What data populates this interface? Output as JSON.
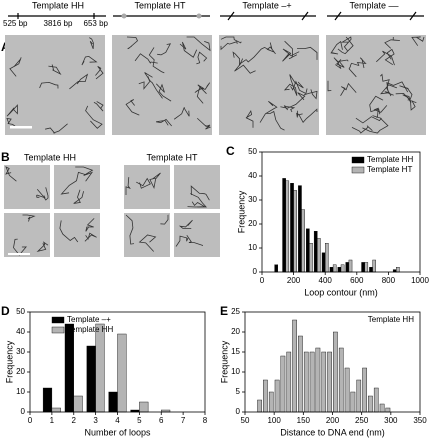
{
  "panel_a": {
    "label": "A",
    "templates": [
      "Template HH",
      "Template HT",
      "Template –+",
      "Template ––"
    ],
    "segments": [
      "525 bp",
      "3816 bp",
      "653 bp"
    ]
  },
  "panel_b": {
    "label": "B",
    "templates": [
      "Template HH",
      "Template HT"
    ]
  },
  "chart_data": [
    {
      "type": "bar",
      "label": "C",
      "xlabel": "Loop contour (nm)",
      "ylabel": "Frequency",
      "x": [
        100,
        150,
        200,
        250,
        300,
        350,
        400,
        450,
        500,
        550,
        600,
        650,
        700,
        750,
        800,
        850
      ],
      "series": [
        {
          "name": "Template HH",
          "color": "#000000",
          "values": [
            3,
            39,
            37,
            36,
            18,
            17,
            8,
            2,
            2,
            4,
            0,
            4,
            2,
            0,
            0,
            1
          ]
        },
        {
          "name": "Template HT",
          "color": "#b4b4b4",
          "values": [
            0,
            38,
            34,
            26,
            12,
            14,
            12,
            3,
            3,
            5,
            0,
            4,
            5,
            0,
            0,
            2
          ]
        }
      ],
      "xlim": [
        0,
        1000
      ],
      "xticks": [
        0,
        200,
        400,
        600,
        800,
        1000
      ],
      "ylim": [
        0,
        50
      ],
      "yticks": [
        0,
        10,
        20,
        30,
        40,
        50
      ],
      "legend": "upper right"
    },
    {
      "type": "bar",
      "label": "D",
      "xlabel": "Number of loops",
      "ylabel": "Frequency",
      "x": [
        1,
        2,
        3,
        4,
        5,
        6,
        7
      ],
      "series": [
        {
          "name": "Template –+",
          "color": "#000000",
          "values": [
            12,
            44,
            33,
            10,
            1,
            0,
            0
          ]
        },
        {
          "name": "Template HH",
          "color": "#b4b4b4",
          "values": [
            2,
            8,
            44,
            39,
            5,
            1,
            0
          ]
        }
      ],
      "xlim": [
        0,
        8
      ],
      "xticks": [
        0,
        1,
        2,
        3,
        4,
        5,
        6,
        7,
        8
      ],
      "ylim": [
        0,
        50
      ],
      "yticks": [
        0,
        10,
        20,
        30,
        40,
        50
      ],
      "legend": "upper left"
    },
    {
      "type": "histogram",
      "label": "E",
      "xlabel": "Distance to DNA end (nm)",
      "ylabel": "Frequency",
      "annotation": "Template HH",
      "color": "#b4b4b4",
      "bins": [
        70,
        80,
        90,
        100,
        110,
        120,
        130,
        140,
        150,
        160,
        170,
        180,
        190,
        200,
        210,
        220,
        230,
        240,
        250,
        260,
        270,
        280,
        290,
        300
      ],
      "values": [
        3,
        8,
        5,
        8,
        14,
        15,
        23,
        19,
        15,
        15,
        16,
        15,
        15,
        20,
        16,
        11,
        5,
        8,
        11,
        4,
        6,
        2,
        1
      ],
      "xlim": [
        50,
        350
      ],
      "xticks": [
        50,
        100,
        150,
        200,
        250,
        300,
        350
      ],
      "ylim": [
        0,
        25
      ],
      "yticks": [
        0,
        5,
        10,
        15,
        20,
        25
      ]
    }
  ]
}
